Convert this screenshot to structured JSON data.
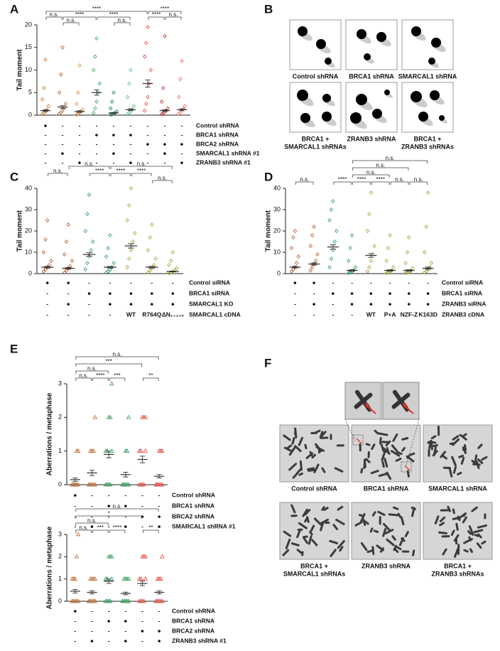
{
  "chart_data": [
    {
      "type": "strip",
      "label": "A",
      "ylabel": "Tail moment",
      "marker": "diamond",
      "ylim": [
        0,
        20
      ],
      "yticks": [
        0,
        5,
        10,
        15,
        20
      ],
      "groups": [
        {
          "color": "#c9782e",
          "values": [
            0.2,
            0.5,
            0.8,
            1.2,
            2,
            3.5,
            6,
            12.3
          ],
          "mean": 1,
          "sem": 0.2
        },
        {
          "color": "#a8612a",
          "values": [
            0.3,
            0.6,
            1,
            1.5,
            2.5,
            5,
            9,
            15
          ],
          "mean": 1.8,
          "sem": 0.3
        },
        {
          "color": "#d4904a",
          "values": [
            0.1,
            0.3,
            0.5,
            0.8,
            1.2,
            2.5,
            5,
            11
          ],
          "mean": 0.8,
          "sem": 0.2
        },
        {
          "color": "#3aa46a",
          "values": [
            0.5,
            1.5,
            3,
            5,
            7,
            10,
            13,
            17
          ],
          "mean": 5,
          "sem": 0.6
        },
        {
          "color": "#1f7a45",
          "values": [
            0.1,
            0.2,
            0.3,
            0.5,
            0.8,
            1.5,
            3,
            5
          ],
          "mean": 0.5,
          "sem": 0.1
        },
        {
          "color": "#5bbf83",
          "values": [
            0.2,
            0.5,
            0.8,
            1.2,
            2,
            4,
            7,
            10
          ],
          "mean": 1.2,
          "sem": 0.2
        },
        {
          "color": "#e4463f",
          "values": [
            1,
            2.5,
            4,
            7,
            10,
            13,
            16,
            19.5
          ],
          "mean": 7,
          "sem": 0.8
        },
        {
          "color": "#b8302b",
          "values": [
            0.2,
            0.4,
            0.7,
            1,
            1.5,
            3,
            6,
            17.5
          ],
          "mean": 1,
          "sem": 0.2
        },
        {
          "color": "#ee6a5f",
          "values": [
            0.3,
            0.6,
            1,
            1.4,
            2,
            4,
            8,
            12
          ],
          "mean": 1.2,
          "sem": 0.2
        }
      ],
      "brackets": [
        {
          "label": "****"
        },
        {
          "label": "****"
        },
        {
          "label": "n.s."
        },
        {
          "label": "****"
        },
        {
          "label": "****"
        },
        {
          "label": "****"
        },
        {
          "label": "n.s."
        },
        {
          "label": "n.s."
        },
        {
          "label": "n.s."
        }
      ],
      "conditions": [
        {
          "label": "Control shRNA",
          "marks": [
            "●",
            "-",
            "-",
            "-",
            "-",
            "-",
            "-",
            "-",
            "-"
          ]
        },
        {
          "label": "BRCA1 shRNA",
          "marks": [
            "-",
            "-",
            "-",
            "●",
            "●",
            "●",
            "-",
            "-",
            "-"
          ]
        },
        {
          "label": "BRCA2 shRNA",
          "marks": [
            "-",
            "-",
            "-",
            "-",
            "-",
            "-",
            "●",
            "●",
            "●"
          ]
        },
        {
          "label": "SMARCAL1 shRNA #1",
          "marks": [
            "-",
            "●",
            "-",
            "-",
            "●",
            "-",
            "-",
            "●",
            "-"
          ]
        },
        {
          "label": "ZRANB3 shRNA #1",
          "marks": [
            "-",
            "-",
            "●",
            "-",
            "-",
            "●",
            "-",
            "-",
            "●"
          ]
        }
      ]
    },
    {
      "type": "strip",
      "label": "C",
      "ylabel": "Tail moment",
      "marker": "diamond",
      "ylim": [
        0,
        40
      ],
      "yticks": [
        0,
        10,
        20,
        30,
        40
      ],
      "groups": [
        {
          "color": "#b05a2a",
          "values": [
            1,
            2,
            3,
            4,
            6,
            10,
            16,
            25
          ],
          "mean": 3,
          "sem": 0.4
        },
        {
          "color": "#b05a2a",
          "values": [
            0.5,
            1.5,
            2.5,
            3.5,
            6,
            9,
            15,
            23
          ],
          "mean": 2.5,
          "sem": 0.4
        },
        {
          "color": "#2e9a5a",
          "values": [
            2,
            5,
            8,
            11,
            15,
            20,
            28,
            37
          ],
          "mean": 9,
          "sem": 0.8
        },
        {
          "color": "#2e9a5a",
          "values": [
            0.5,
            1,
            2,
            3,
            5,
            8,
            12,
            18
          ],
          "mean": 3,
          "sem": 0.4
        },
        {
          "color": "#a6a03a",
          "values": [
            3,
            7,
            11,
            15,
            19,
            25,
            32,
            40
          ],
          "mean": 13,
          "sem": 1
        },
        {
          "color": "#a6a03a",
          "values": [
            0.5,
            1.5,
            2.5,
            4,
            7,
            11,
            17,
            23
          ],
          "mean": 3,
          "sem": 0.4
        },
        {
          "color": "#a6a03a",
          "values": [
            0.2,
            0.5,
            1,
            1.5,
            2.5,
            4,
            6,
            10
          ],
          "mean": 1,
          "sem": 0.2
        }
      ],
      "brackets": [
        {
          "label": "n.s."
        },
        {
          "label": "n.s."
        },
        {
          "label": "n.s."
        },
        {
          "label": "****"
        },
        {
          "label": "****"
        },
        {
          "label": "****"
        },
        {
          "label": "n.s."
        }
      ],
      "conditions": [
        {
          "label": "Control siRNA",
          "marks": [
            "●",
            "●",
            "-",
            "-",
            "-",
            "-",
            "-"
          ]
        },
        {
          "label": "BRCA1 siRNA",
          "marks": [
            "-",
            "-",
            "●",
            "●",
            "●",
            "●",
            "●"
          ]
        },
        {
          "label": "SMARCAL1 KO",
          "marks": [
            "-",
            "●",
            "-",
            "●",
            "●",
            "●",
            "●"
          ]
        },
        {
          "label": "SMARCAL1 cDNA",
          "marks": [
            "-",
            "-",
            "-",
            "-",
            "WT",
            "R764Q",
            "ΔN₁₋₁₁₅"
          ]
        }
      ]
    },
    {
      "type": "strip",
      "label": "D",
      "ylabel": "Tail moment",
      "marker": "diamond",
      "ylim": [
        0,
        40
      ],
      "yticks": [
        0,
        10,
        20,
        30,
        40
      ],
      "groups": [
        {
          "color": "#b05a2a",
          "values": [
            1,
            2,
            3,
            5,
            8,
            12,
            17,
            20
          ],
          "mean": 3,
          "sem": 0.4
        },
        {
          "color": "#b05a2a",
          "values": [
            1.5,
            3,
            4.5,
            6,
            9,
            13,
            18,
            22
          ],
          "mean": 4.5,
          "sem": 0.5
        },
        {
          "color": "#2e9a5a",
          "values": [
            3,
            7,
            11,
            15,
            20,
            25,
            30,
            34
          ],
          "mean": 12.5,
          "sem": 1
        },
        {
          "color": "#2e9a5a",
          "values": [
            0.3,
            0.6,
            1,
            1.5,
            3,
            6,
            12,
            18
          ],
          "mean": 1.5,
          "sem": 0.3
        },
        {
          "color": "#a6a03a",
          "values": [
            1,
            3,
            6,
            9,
            13,
            20,
            28,
            38
          ],
          "mean": 8.5,
          "sem": 0.9
        },
        {
          "color": "#a6a03a",
          "values": [
            0.3,
            0.6,
            1,
            1.5,
            3,
            6,
            12,
            18
          ],
          "mean": 1.5,
          "sem": 0.3
        },
        {
          "color": "#a6a03a",
          "values": [
            0.3,
            0.5,
            0.8,
            1.2,
            2.5,
            5,
            10,
            17
          ],
          "mean": 1.5,
          "sem": 0.3
        },
        {
          "color": "#a6a03a",
          "values": [
            0.5,
            1,
            2,
            3,
            5,
            10,
            22,
            38
          ],
          "mean": 2.5,
          "sem": 0.5
        }
      ],
      "brackets": [
        {
          "label": "n.s."
        },
        {
          "label": "n.s."
        },
        {
          "label": "n.s."
        },
        {
          "label": "n.s."
        },
        {
          "label": "****"
        },
        {
          "label": "****"
        },
        {
          "label": "****"
        },
        {
          "label": "n.s."
        },
        {
          "label": "n.s."
        }
      ],
      "conditions": [
        {
          "label": "Control siRNA",
          "marks": [
            "●",
            "●",
            "-",
            "-",
            "-",
            "-",
            "-",
            "-"
          ]
        },
        {
          "label": "BRCA1 siRNA",
          "marks": [
            "-",
            "-",
            "●",
            "●",
            "●",
            "●",
            "●",
            "●"
          ]
        },
        {
          "label": "ZRANB3 siRNA",
          "marks": [
            "-",
            "●",
            "-",
            "●",
            "●",
            "●",
            "●",
            "●"
          ]
        },
        {
          "label": "ZRANB3 cDNA",
          "marks": [
            "-",
            "-",
            "-",
            "-",
            "WT",
            "P+A",
            "NZF-Z",
            "K163D"
          ]
        }
      ]
    },
    {
      "type": "strip",
      "label": "E",
      "ylabel": "Aberrations / metaphase",
      "marker": "triangle",
      "ylim": [
        0,
        3
      ],
      "yticks": [
        0,
        1,
        2,
        3
      ],
      "groups": [
        {
          "color": "#b8672c",
          "values": [
            0,
            0,
            0,
            0,
            0,
            0,
            0,
            0,
            1,
            1
          ],
          "mean": 0.15,
          "sem": 0.05
        },
        {
          "color": "#b8672c",
          "values": [
            0,
            0,
            0,
            0,
            0,
            0,
            1,
            1,
            1,
            2
          ],
          "mean": 0.35,
          "sem": 0.08
        },
        {
          "color": "#2e9a5a",
          "values": [
            0,
            0,
            0,
            0,
            1,
            1,
            1,
            2,
            2,
            3
          ],
          "mean": 0.9,
          "sem": 0.1
        },
        {
          "color": "#2e9a5a",
          "values": [
            0,
            0,
            0,
            0,
            0,
            0,
            0,
            1,
            1,
            2
          ],
          "mean": 0.3,
          "sem": 0.07
        },
        {
          "color": "#e0463f",
          "values": [
            0,
            0,
            0,
            0,
            1,
            1,
            1,
            2,
            2,
            2
          ],
          "mean": 0.75,
          "sem": 0.1
        },
        {
          "color": "#e0463f",
          "values": [
            0,
            0,
            0,
            0,
            0,
            0,
            0,
            1,
            1,
            1
          ],
          "mean": 0.25,
          "sem": 0.05
        }
      ],
      "brackets": [
        {
          "label": "n.s."
        },
        {
          "label": "***"
        },
        {
          "label": "n.s."
        },
        {
          "label": "n.s."
        },
        {
          "label": "****"
        },
        {
          "label": "***"
        },
        {
          "label": "**"
        }
      ],
      "conditions": [
        {
          "label": "Control shRNA",
          "marks": [
            "●",
            "-",
            "-",
            "-",
            "-",
            "-"
          ]
        },
        {
          "label": "BRCA1 shRNA",
          "marks": [
            "-",
            "-",
            "●",
            "●",
            "-",
            "-"
          ]
        },
        {
          "label": "BRCA2 shRNA",
          "marks": [
            "-",
            "-",
            "-",
            "-",
            "●",
            "●"
          ]
        },
        {
          "label": "SMARCAL1 shRNA #1",
          "marks": [
            "-",
            "●",
            "-",
            "●",
            "-",
            "●"
          ]
        }
      ]
    },
    {
      "type": "strip",
      "ylabel": "Aberrations / metaphase",
      "marker": "triangle",
      "ylim": [
        0,
        3
      ],
      "yticks": [
        0,
        1,
        2,
        3
      ],
      "groups": [
        {
          "color": "#b8672c",
          "values": [
            0,
            0,
            0,
            0,
            0,
            1,
            1,
            1,
            2,
            3
          ],
          "mean": 0.45,
          "sem": 0.08
        },
        {
          "color": "#b8672c",
          "values": [
            0,
            0,
            0,
            0,
            0,
            0,
            1,
            1,
            1,
            1
          ],
          "mean": 0.4,
          "sem": 0.07
        },
        {
          "color": "#2e9a5a",
          "values": [
            0,
            0,
            0,
            0,
            1,
            1,
            1,
            2,
            2,
            2
          ],
          "mean": 0.9,
          "sem": 0.1
        },
        {
          "color": "#2e9a5a",
          "values": [
            0,
            0,
            0,
            0,
            0,
            0,
            1,
            1,
            1,
            1
          ],
          "mean": 0.35,
          "sem": 0.06
        },
        {
          "color": "#e0463f",
          "values": [
            0,
            0,
            0,
            0,
            1,
            1,
            1,
            2,
            2,
            2
          ],
          "mean": 0.8,
          "sem": 0.1
        },
        {
          "color": "#e0463f",
          "values": [
            0,
            0,
            0,
            0,
            0,
            0,
            1,
            1,
            1,
            2
          ],
          "mean": 0.4,
          "sem": 0.07
        }
      ],
      "brackets": [
        {
          "label": "n.s."
        },
        {
          "label": "*"
        },
        {
          "label": "n.s."
        },
        {
          "label": "n.s."
        },
        {
          "label": "***"
        },
        {
          "label": "****"
        },
        {
          "label": "**"
        }
      ],
      "conditions": [
        {
          "label": "Control shRNA",
          "marks": [
            "●",
            "-",
            "-",
            "-",
            "-",
            "-"
          ]
        },
        {
          "label": "BRCA1 shRNA",
          "marks": [
            "-",
            "-",
            "●",
            "●",
            "-",
            "-"
          ]
        },
        {
          "label": "BRCA2 shRNA",
          "marks": [
            "-",
            "-",
            "-",
            "-",
            "●",
            "●"
          ]
        },
        {
          "label": "ZRANB3 shRNA #1",
          "marks": [
            "-",
            "●",
            "-",
            "●",
            "-",
            "●"
          ]
        }
      ]
    }
  ],
  "panel_B": {
    "label": "B",
    "captions": [
      [
        "Control shRNA"
      ],
      [
        "BRCA1 shRNA"
      ],
      [
        "SMARCAL1 shRNA"
      ],
      [
        "BRCA1 +",
        "SMARCAL1 shRNAs"
      ],
      [
        "ZRANB3 shRNA"
      ],
      [
        "BRCA1 +",
        "ZRANB3 shRNAs"
      ]
    ]
  },
  "panel_F": {
    "label": "F",
    "captions": [
      [
        "Control shRNA"
      ],
      [
        "BRCA1 shRNA"
      ],
      [
        "SMARCAL1 shRNA"
      ],
      [
        "BRCA1 +",
        "SMARCAL1 shRNAs"
      ],
      [
        "ZRANB3 shRNA"
      ],
      [
        "BRCA1 +",
        "ZRANB3 shRNAs"
      ]
    ]
  }
}
